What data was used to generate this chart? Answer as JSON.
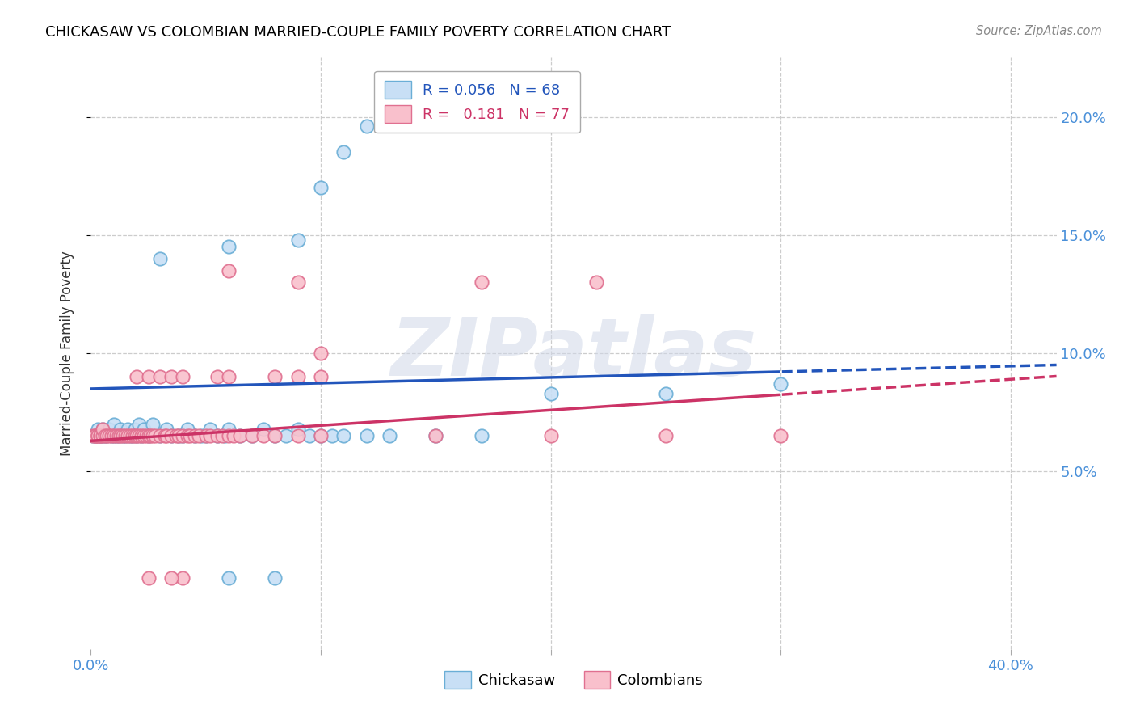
{
  "title": "CHICKASAW VS COLOMBIAN MARRIED-COUPLE FAMILY POVERTY CORRELATION CHART",
  "source": "Source: ZipAtlas.com",
  "ylabel": "Married-Couple Family Poverty",
  "watermark": "ZIPatlas",
  "xlim": [
    0.0,
    0.42
  ],
  "ylim": [
    -0.025,
    0.225
  ],
  "ytick_vals": [
    0.05,
    0.1,
    0.15,
    0.2
  ],
  "ytick_labels": [
    "5.0%",
    "10.0%",
    "15.0%",
    "20.0%"
  ],
  "xtick_vals": [
    0.0,
    0.1,
    0.2,
    0.3,
    0.4
  ],
  "xtick_labels": [
    "0.0%",
    "",
    "",
    "",
    "40.0%"
  ],
  "chickasaw_color": "#c8dff5",
  "chickasaw_edge": "#6aaed6",
  "colombian_color": "#f9c0cc",
  "colombian_edge": "#e07090",
  "trendline_chickasaw": "#2255bb",
  "trendline_colombian": "#cc3366",
  "legend1_texts": [
    "R = 0.056   N = 68",
    "R =   0.181   N = 77"
  ],
  "legend1_colors": [
    "#2255bb",
    "#cc3366"
  ],
  "legend2_labels": [
    "Chickasaw",
    "Colombians"
  ],
  "chickasaw_intercept": 0.085,
  "chickasaw_slope": 0.024,
  "colombian_intercept": 0.063,
  "colombian_slope": 0.065,
  "chickasaw_points_x": [
    0.001,
    0.002,
    0.002,
    0.003,
    0.003,
    0.004,
    0.004,
    0.005,
    0.005,
    0.006,
    0.007,
    0.008,
    0.009,
    0.01,
    0.01,
    0.011,
    0.012,
    0.013,
    0.014,
    0.015,
    0.016,
    0.017,
    0.018,
    0.019,
    0.02,
    0.021,
    0.022,
    0.023,
    0.025,
    0.027,
    0.03,
    0.033,
    0.035,
    0.038,
    0.04,
    0.042,
    0.045,
    0.048,
    0.05,
    0.052,
    0.055,
    0.058,
    0.06,
    0.065,
    0.07,
    0.075,
    0.08,
    0.085,
    0.09,
    0.095,
    0.1,
    0.105,
    0.11,
    0.12,
    0.13,
    0.15,
    0.17,
    0.2,
    0.25,
    0.3,
    0.03,
    0.06,
    0.09,
    0.1,
    0.11,
    0.12,
    0.06,
    0.08
  ],
  "chickasaw_points_y": [
    0.065,
    0.065,
    0.065,
    0.065,
    0.068,
    0.065,
    0.065,
    0.065,
    0.068,
    0.065,
    0.065,
    0.068,
    0.065,
    0.065,
    0.07,
    0.065,
    0.065,
    0.068,
    0.065,
    0.065,
    0.068,
    0.065,
    0.065,
    0.068,
    0.065,
    0.07,
    0.065,
    0.068,
    0.065,
    0.07,
    0.065,
    0.068,
    0.065,
    0.065,
    0.065,
    0.068,
    0.065,
    0.065,
    0.065,
    0.068,
    0.065,
    0.065,
    0.068,
    0.065,
    0.065,
    0.068,
    0.065,
    0.065,
    0.068,
    0.065,
    0.065,
    0.065,
    0.065,
    0.065,
    0.065,
    0.065,
    0.065,
    0.083,
    0.083,
    0.087,
    0.14,
    0.145,
    0.148,
    0.17,
    0.185,
    0.196,
    0.005,
    0.005
  ],
  "colombian_points_x": [
    0.001,
    0.002,
    0.002,
    0.003,
    0.003,
    0.004,
    0.004,
    0.005,
    0.005,
    0.006,
    0.007,
    0.008,
    0.009,
    0.01,
    0.011,
    0.012,
    0.013,
    0.014,
    0.015,
    0.016,
    0.017,
    0.018,
    0.019,
    0.02,
    0.021,
    0.022,
    0.023,
    0.024,
    0.025,
    0.026,
    0.027,
    0.028,
    0.03,
    0.032,
    0.033,
    0.035,
    0.037,
    0.038,
    0.04,
    0.042,
    0.043,
    0.045,
    0.047,
    0.05,
    0.052,
    0.055,
    0.057,
    0.06,
    0.062,
    0.065,
    0.07,
    0.075,
    0.08,
    0.09,
    0.1,
    0.15,
    0.2,
    0.25,
    0.3,
    0.02,
    0.025,
    0.03,
    0.035,
    0.04,
    0.055,
    0.06,
    0.08,
    0.09,
    0.1,
    0.1,
    0.17,
    0.22,
    0.06,
    0.09,
    0.04,
    0.025,
    0.035
  ],
  "colombian_points_y": [
    0.065,
    0.065,
    0.065,
    0.065,
    0.065,
    0.065,
    0.065,
    0.065,
    0.068,
    0.065,
    0.065,
    0.065,
    0.065,
    0.065,
    0.065,
    0.065,
    0.065,
    0.065,
    0.065,
    0.065,
    0.065,
    0.065,
    0.065,
    0.065,
    0.065,
    0.065,
    0.065,
    0.065,
    0.065,
    0.065,
    0.065,
    0.065,
    0.065,
    0.065,
    0.065,
    0.065,
    0.065,
    0.065,
    0.065,
    0.065,
    0.065,
    0.065,
    0.065,
    0.065,
    0.065,
    0.065,
    0.065,
    0.065,
    0.065,
    0.065,
    0.065,
    0.065,
    0.065,
    0.065,
    0.065,
    0.065,
    0.065,
    0.065,
    0.065,
    0.09,
    0.09,
    0.09,
    0.09,
    0.09,
    0.09,
    0.09,
    0.09,
    0.09,
    0.09,
    0.1,
    0.13,
    0.13,
    0.135,
    0.13,
    0.005,
    0.005,
    0.005
  ]
}
